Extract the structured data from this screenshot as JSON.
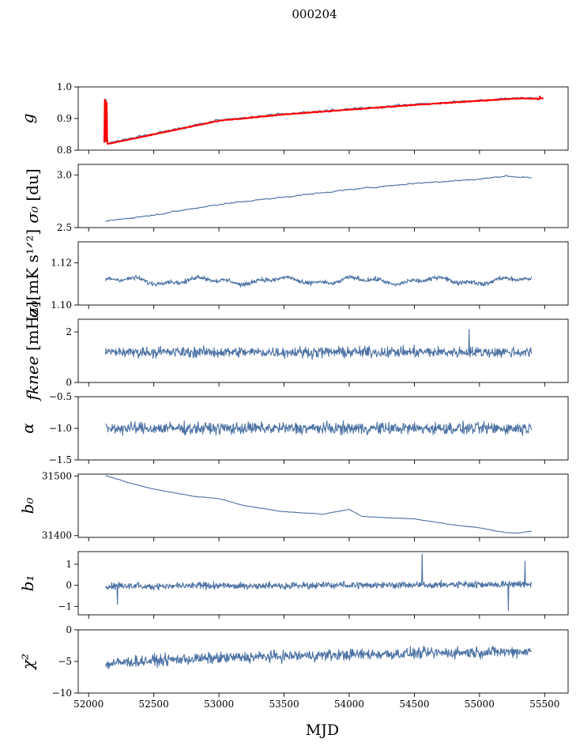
{
  "figure": {
    "title": "000204",
    "xlabel": "MJD"
  },
  "chart_data": {
    "type": "line",
    "title": "000204",
    "xlabel": "MJD",
    "xlim": [
      51920,
      55680
    ],
    "xticks": [
      52000,
      52500,
      53000,
      53500,
      54000,
      54500,
      55000,
      55500
    ],
    "xtick_labels": [
      "52000",
      "52500",
      "53000",
      "53500",
      "54000",
      "54500",
      "55000",
      "55500"
    ],
    "x_start": 52130,
    "x_end": 55400,
    "colors": {
      "series": "#4c72a4",
      "overlay": "#ff0000"
    },
    "panels": [
      {
        "id": "g",
        "ylabel_main": "g",
        "ylabel_unit": "",
        "ylim": [
          0.8,
          1.0
        ],
        "yticks": [
          0.8,
          0.9,
          1.0
        ],
        "ytick_labels": [
          "0.8",
          "0.9",
          "1.0"
        ],
        "kind": "trend",
        "start": 0.826,
        "end": 0.965,
        "noise": 0.002,
        "overlay": true,
        "key_points": [
          [
            52130,
            0.826
          ],
          [
            52150,
            0.822
          ],
          [
            52500,
            0.852
          ],
          [
            53000,
            0.895
          ],
          [
            53500,
            0.915
          ],
          [
            54000,
            0.93
          ],
          [
            54500,
            0.945
          ],
          [
            55000,
            0.958
          ],
          [
            55300,
            0.966
          ],
          [
            55400,
            0.965
          ]
        ]
      },
      {
        "id": "sigma0_du",
        "ylabel_main": "σ₀",
        "ylabel_unit": " [du]",
        "ylim": [
          2.5,
          3.1
        ],
        "yticks": [
          2.5,
          3.0
        ],
        "ytick_labels": [
          "2.5",
          "3.0"
        ],
        "kind": "trend",
        "noise": 0.004,
        "key_points": [
          [
            52130,
            2.56
          ],
          [
            52500,
            2.62
          ],
          [
            53000,
            2.72
          ],
          [
            53500,
            2.79
          ],
          [
            54000,
            2.86
          ],
          [
            54500,
            2.92
          ],
          [
            55000,
            2.96
          ],
          [
            55200,
            2.99
          ],
          [
            55400,
            2.97
          ]
        ]
      },
      {
        "id": "sigma0_mks",
        "ylabel_main": "σ₀",
        "ylabel_unit": "[mK s¹ᐟ²]",
        "ylim": [
          1.1,
          1.13
        ],
        "yticks": [
          1.1,
          1.12
        ],
        "ytick_labels": [
          "1.10",
          "1.12"
        ],
        "kind": "wavy",
        "mean": 1.1115,
        "amp": 0.0012,
        "noise": 0.0009
      },
      {
        "id": "fknee",
        "ylabel_main": "fknee",
        "ylabel_unit": " [mHz]",
        "ylim": [
          0,
          2.5
        ],
        "yticks": [
          0,
          2
        ],
        "ytick_labels": [
          "0",
          "2"
        ],
        "kind": "noise",
        "mean": 1.2,
        "noise": 0.18,
        "spikes": [
          [
            54920,
            2.1
          ]
        ]
      },
      {
        "id": "alpha",
        "ylabel_main": "α",
        "ylabel_unit": "",
        "ylim": [
          -1.5,
          -0.5
        ],
        "yticks": [
          -1.5,
          -1.0,
          -0.5
        ],
        "ytick_labels": [
          "−1.5",
          "−1.0",
          "−0.5"
        ],
        "kind": "noise",
        "mean": -1.0,
        "noise": 0.08
      },
      {
        "id": "b0",
        "ylabel_main": "b₀",
        "ylabel_unit": "",
        "ylim": [
          31397,
          31503
        ],
        "yticks": [
          31400,
          31500
        ],
        "ytick_labels": [
          "31400",
          "31500"
        ],
        "kind": "trend",
        "noise": 0.25,
        "key_points": [
          [
            52130,
            31501
          ],
          [
            52300,
            31489
          ],
          [
            52500,
            31478
          ],
          [
            52800,
            31466
          ],
          [
            53000,
            31462
          ],
          [
            53200,
            31450
          ],
          [
            53500,
            31440
          ],
          [
            53800,
            31436
          ],
          [
            54000,
            31444
          ],
          [
            54100,
            31432
          ],
          [
            54500,
            31428
          ],
          [
            54800,
            31418
          ],
          [
            55000,
            31413
          ],
          [
            55200,
            31405
          ],
          [
            55300,
            31404
          ],
          [
            55400,
            31408
          ]
        ]
      },
      {
        "id": "b1",
        "ylabel_main": "b₁",
        "ylabel_unit": "",
        "ylim": [
          -1.4,
          1.6
        ],
        "yticks": [
          -1,
          0,
          1
        ],
        "ytick_labels": [
          "−1",
          "0",
          "1"
        ],
        "kind": "noise",
        "mean": -0.05,
        "noise": 0.14,
        "trend_end": 0.1,
        "spikes": [
          [
            54560,
            1.5
          ],
          [
            55220,
            -1.2
          ],
          [
            55350,
            1.15
          ],
          [
            52220,
            -0.9
          ]
        ]
      },
      {
        "id": "chi2",
        "ylabel_main": "χ²",
        "ylabel_unit": "",
        "ylim": [
          -10,
          0
        ],
        "yticks": [
          -10,
          -5,
          0
        ],
        "ytick_labels": [
          "−10",
          "−5",
          "0"
        ],
        "kind": "noise",
        "mean": -4.2,
        "noise": 0.75,
        "trend_start": -5.6,
        "trend_end": -3.4
      }
    ]
  }
}
